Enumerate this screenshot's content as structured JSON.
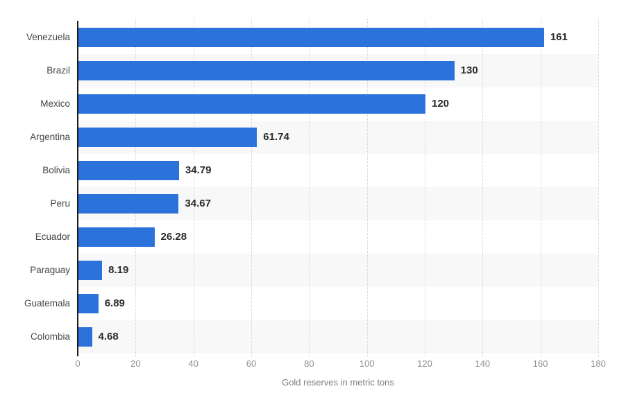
{
  "chart_data": {
    "type": "bar",
    "orientation": "horizontal",
    "title": "",
    "xlabel": "Gold reserves in metric tons",
    "ylabel": "",
    "xlim": [
      0,
      180
    ],
    "xticks": [
      "0",
      "20",
      "40",
      "60",
      "80",
      "100",
      "120",
      "140",
      "160",
      "180"
    ],
    "xtick_values": [
      0,
      20,
      40,
      60,
      80,
      100,
      120,
      140,
      160,
      180
    ],
    "grid": "vertical-dotted",
    "legend": "none",
    "categories": [
      "Venezuela",
      "Brazil",
      "Mexico",
      "Argentina",
      "Bolivia",
      "Peru",
      "Ecuador",
      "Paraguay",
      "Guatemala",
      "Colombia"
    ],
    "values": [
      161,
      130,
      120,
      61.74,
      34.79,
      34.67,
      26.28,
      8.19,
      6.89,
      4.68
    ],
    "value_labels": [
      "161",
      "130",
      "120",
      "61.74",
      "34.79",
      "34.67",
      "26.28",
      "8.19",
      "6.89",
      "4.68"
    ]
  },
  "colors": {
    "bar": "#2b73da",
    "row_band": "#f8f8f8",
    "gridline": "#d4d4d4",
    "axis_line": "#1a1a1a",
    "category_text": "#454545",
    "value_text": "#2b2b2b",
    "tick_text": "#8f8f8f",
    "axis_title_text": "#7d7d7d",
    "background": "#ffffff"
  }
}
